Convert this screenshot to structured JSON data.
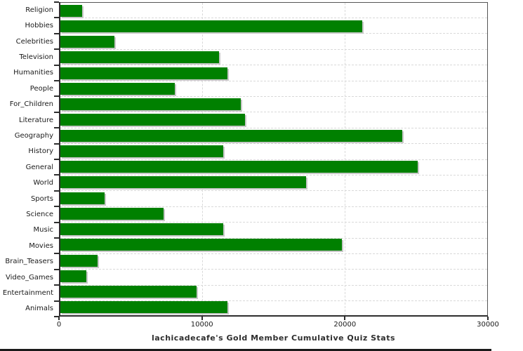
{
  "colors": {
    "bar": "#008000",
    "bar_shadow": "#c8c8c8",
    "grid": "#d9d9d9",
    "axis": "#2e2e2e",
    "plot_border": "#555555",
    "text": "#1a1a1a",
    "background": "#ffffff",
    "bottom_rule": "#1a1a1a"
  },
  "chart_data": {
    "type": "bar",
    "orientation": "horizontal",
    "title": "lachicadecafe's Gold Member Cumulative Quiz Stats",
    "xlabel": "",
    "ylabel": "",
    "categories": [
      "Religion",
      "Hobbies",
      "Celebrities",
      "Television",
      "Humanities",
      "People",
      "For_Children",
      "Literature",
      "Geography",
      "History",
      "General",
      "World",
      "Sports",
      "Science",
      "Music",
      "Movies",
      "Brain_Teasers",
      "Video_Games",
      "Entertainment",
      "Animals"
    ],
    "values": [
      1500,
      21100,
      3800,
      11100,
      11700,
      8000,
      12600,
      12900,
      23900,
      11400,
      25000,
      17200,
      3100,
      7200,
      11400,
      19700,
      2600,
      1800,
      9500,
      11700
    ],
    "xlim": [
      0,
      30000
    ],
    "xticks": [
      0,
      10000,
      20000,
      30000
    ],
    "xtick_labels": [
      "0",
      "10000",
      "20000",
      "30000"
    ],
    "grid": "dashed",
    "legend": "none"
  }
}
